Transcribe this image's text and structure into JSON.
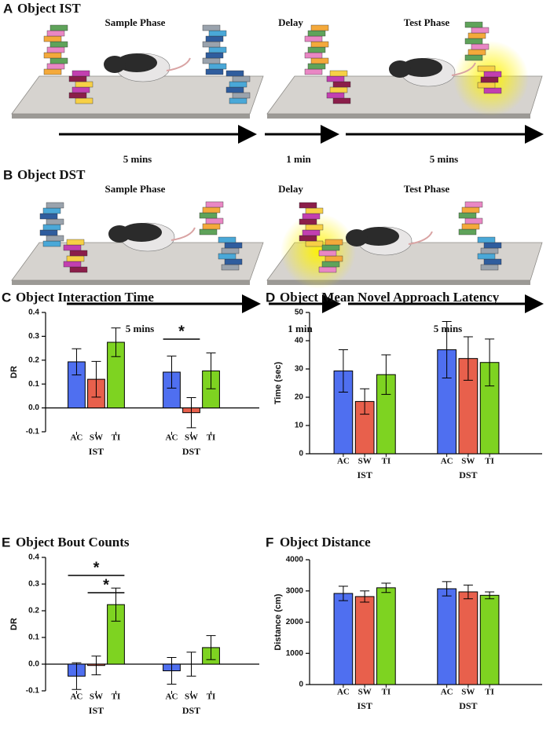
{
  "schematics": [
    {
      "panel": "A",
      "title": "Object IST",
      "phases": [
        "Sample Phase",
        "Delay",
        "Test Phase"
      ],
      "durations": [
        "5 mins",
        "1 min",
        "5 mins"
      ]
    },
    {
      "panel": "B",
      "title": "Object DST",
      "phases": [
        "Sample Phase",
        "Delay",
        "Test Phase"
      ],
      "durations": [
        "5 mins",
        "1 min",
        "5 mins"
      ]
    }
  ],
  "chart_data": [
    {
      "type": "bar",
      "panel": "C",
      "title": "Object Interaction Time",
      "y_label": "DR",
      "categories": [
        "AC",
        "SW",
        "TI",
        "AC",
        "SW",
        "TI"
      ],
      "groups": [
        "IST",
        "DST"
      ],
      "values": [
        0.193,
        0.12,
        0.275,
        0.15,
        -0.02,
        0.155
      ],
      "errors": [
        0.055,
        0.075,
        0.06,
        0.067,
        0.063,
        0.075
      ],
      "colors": [
        "#4f6ff0",
        "#e8604c",
        "#7ed321",
        "#4f6ff0",
        "#e8604c",
        "#7ed321"
      ],
      "ylim": [
        -0.1,
        0.4
      ],
      "yticks": [
        -0.1,
        {
          "value": 0,
          "label": "0.0"
        },
        0.1,
        0.2,
        0.3,
        0.4
      ],
      "annotations": [
        "*"
      ]
    },
    {
      "type": "bar",
      "panel": "D",
      "title": "Object Mean Novel Approach Latency",
      "y_label": "Time (sec)",
      "categories": [
        "AC",
        "SW",
        "TI",
        "AC",
        "SW",
        "TI"
      ],
      "groups": [
        "IST",
        "DST"
      ],
      "values": [
        29.3,
        18.5,
        28,
        36.8,
        33.7,
        32.3
      ],
      "errors": [
        7.5,
        4.5,
        7,
        10,
        7.7,
        8.3
      ],
      "colors": [
        "#4f6ff0",
        "#e8604c",
        "#7ed321",
        "#4f6ff0",
        "#e8604c",
        "#7ed321"
      ],
      "ylim": [
        0,
        50
      ],
      "yticks": [
        0,
        10,
        20,
        30,
        40,
        50
      ],
      "annotations": []
    },
    {
      "type": "bar",
      "panel": "E",
      "title": "Object Bout Counts",
      "y_label": "DR",
      "categories": [
        "AC",
        "SW",
        "TI",
        "AC",
        "SW",
        "TI"
      ],
      "groups": [
        "IST",
        "DST"
      ],
      "values": [
        -0.045,
        -0.005,
        0.223,
        -0.025,
        0,
        0.062
      ],
      "errors": [
        0.05,
        0.035,
        0.062,
        0.05,
        0.045,
        0.045
      ],
      "colors": [
        "#4f6ff0",
        "#e8604c",
        "#7ed321",
        "#4f6ff0",
        "#e8604c",
        "#7ed321"
      ],
      "ylim": [
        -0.1,
        0.4
      ],
      "yticks": [
        -0.1,
        {
          "value": 0,
          "label": "0.0"
        },
        0.1,
        0.2,
        0.3,
        0.4
      ],
      "annotations": [
        "*",
        "*"
      ]
    },
    {
      "type": "bar",
      "panel": "F",
      "title": "Object Distance",
      "y_label": "Distance (cm)",
      "categories": [
        "AC",
        "SW",
        "TI",
        "AC",
        "SW",
        "TI"
      ],
      "groups": [
        "IST",
        "DST"
      ],
      "values": [
        2920,
        2820,
        3100,
        3070,
        2970,
        2860
      ],
      "errors": [
        230,
        180,
        150,
        230,
        220,
        110
      ],
      "colors": [
        "#4f6ff0",
        "#e8604c",
        "#7ed321",
        "#4f6ff0",
        "#e8604c",
        "#7ed321"
      ],
      "ylim": [
        0,
        4000
      ],
      "yticks": [
        0,
        1000,
        2000,
        3000,
        4000
      ],
      "annotations": []
    }
  ]
}
